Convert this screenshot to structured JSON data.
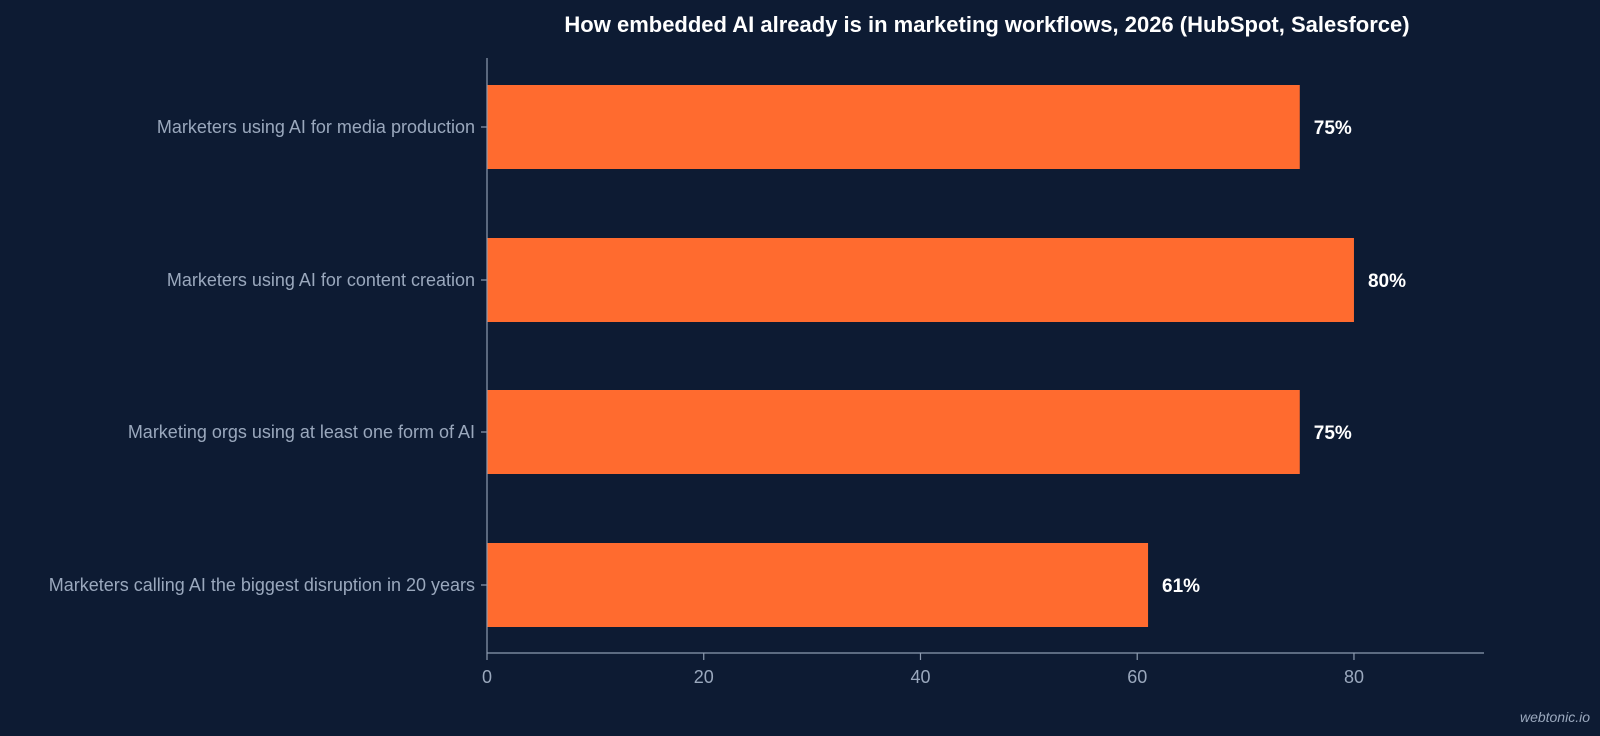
{
  "chart_data": {
    "type": "bar",
    "orientation": "horizontal",
    "title": "How embedded AI already is in marketing workflows, 2026 (HubSpot, Salesforce)",
    "categories": [
      "Marketers using AI for media production",
      "Marketers using AI for content creation",
      "Marketing orgs using at least one form of AI",
      "Marketers calling AI the biggest disruption in 20 years"
    ],
    "values": [
      75,
      80,
      75,
      61
    ],
    "data_labels": [
      "75%",
      "80%",
      "75%",
      "61%"
    ],
    "xlabel": "",
    "ylabel": "",
    "xlim": [
      0,
      92
    ],
    "xticks": [
      0,
      20,
      40,
      60,
      80
    ],
    "xtick_labels": [
      "0",
      "20",
      "40",
      "60",
      "80"
    ],
    "grid": false,
    "legend": "none",
    "colors": {
      "background": "#0d1b33",
      "bar": "#ff6b2f",
      "axis": "#8d9bb0",
      "label_text": "#9aa8bd",
      "value_text": "#ffffff",
      "title_text": "#ffffff"
    }
  },
  "watermark": "webtonic.io"
}
